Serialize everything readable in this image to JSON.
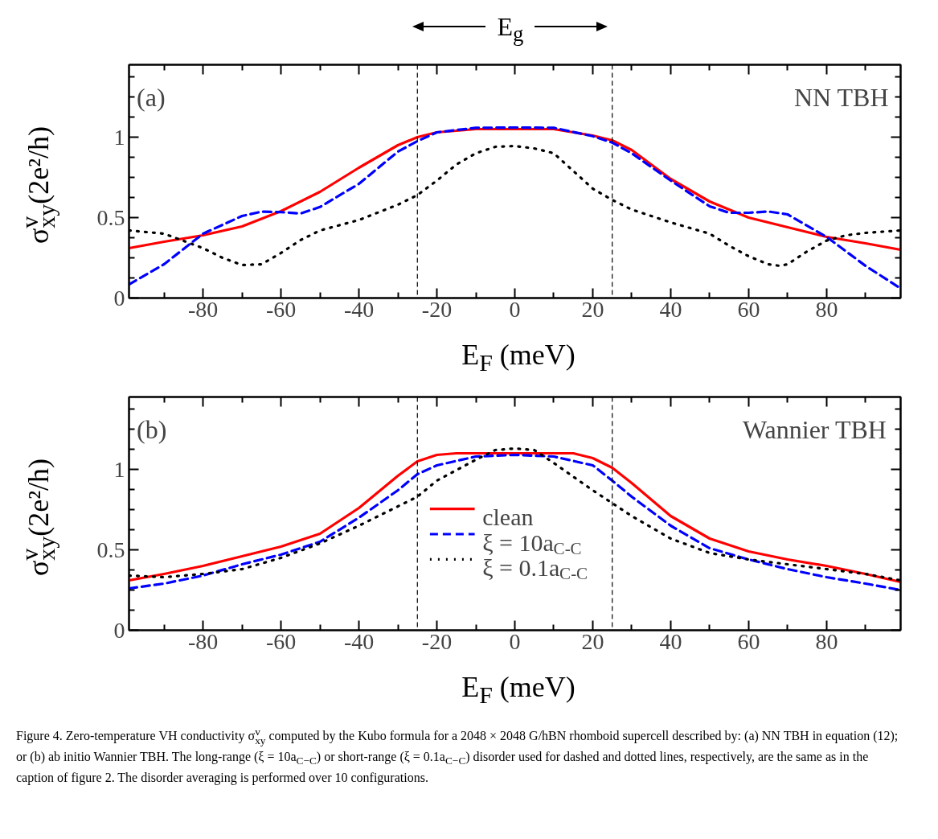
{
  "chart_data": [
    {
      "type": "line",
      "xlabel": "E$_{F}$ (meV)",
      "ylabel": "σ$^{v}$$_{xy}$(2e²/h)",
      "xlim": [
        -99,
        99
      ],
      "ylim": [
        0,
        1.45
      ],
      "xticks": [
        {
          "value": -90,
          "label": null
        },
        -80,
        {
          "value": -70,
          "label": null
        },
        -60,
        {
          "value": -50,
          "label": null
        },
        -40,
        {
          "value": -30,
          "label": null
        },
        -20,
        {
          "value": -10,
          "label": null
        },
        0,
        {
          "value": 10,
          "label": null
        },
        20,
        {
          "value": 30,
          "label": null
        },
        40,
        {
          "value": 50,
          "label": null
        },
        60,
        {
          "value": 70,
          "label": null
        },
        80,
        {
          "value": 90,
          "label": null
        }
      ],
      "yticks": [
        0,
        {
          "value": 0.125,
          "label": null
        },
        {
          "value": 0.25,
          "label": null
        },
        {
          "value": 0.375,
          "label": null
        },
        0.5,
        {
          "value": 0.625,
          "label": null
        },
        {
          "value": 0.75,
          "label": null
        },
        {
          "value": 0.875,
          "label": null
        },
        1,
        {
          "value": 1.125,
          "label": null
        },
        {
          "value": 1.25,
          "label": null
        },
        {
          "value": 1.375,
          "label": null
        }
      ],
      "grid": false,
      "legend": false,
      "marker": "none",
      "annotations": [
        "(a)",
        "NN TBH",
        "E$_{g}$"
      ],
      "ref_lines": [
        {
          "axis": "x",
          "value": -25,
          "color": "#000000",
          "line_style": "dashed"
        },
        {
          "axis": "x",
          "value": 25,
          "color": "#000000",
          "line_style": "dashed"
        }
      ],
      "series": [
        {
          "color": "#ff0000",
          "line_style": "solid",
          "x": [
            -99,
            -90,
            -80,
            -70,
            -60,
            -50,
            -40,
            -30,
            -25,
            -20,
            -10,
            0,
            10,
            20,
            25,
            30,
            40,
            50,
            60,
            70,
            80,
            90,
            99
          ],
          "values": [
            0.31,
            0.35,
            0.39,
            0.445,
            0.54,
            0.66,
            0.81,
            0.95,
            1.0,
            1.03,
            1.05,
            1.05,
            1.05,
            1.01,
            0.98,
            0.92,
            0.74,
            0.6,
            0.5,
            0.44,
            0.38,
            0.34,
            0.3
          ]
        },
        {
          "color": "#0000ff",
          "line_style": "dashed",
          "x": [
            -99,
            -90,
            -80,
            -70,
            -65,
            -60,
            -55,
            -50,
            -40,
            -30,
            -25,
            -20,
            -10,
            0,
            10,
            20,
            25,
            30,
            40,
            50,
            55,
            60,
            65,
            70,
            80,
            90,
            99
          ],
          "values": [
            0.085,
            0.21,
            0.4,
            0.51,
            0.537,
            0.534,
            0.525,
            0.566,
            0.71,
            0.91,
            0.975,
            1.03,
            1.058,
            1.06,
            1.058,
            1.006,
            0.966,
            0.9,
            0.73,
            0.57,
            0.53,
            0.53,
            0.538,
            0.52,
            0.38,
            0.2,
            0.06
          ]
        },
        {
          "color": "#000000",
          "line_style": "dotted",
          "x": [
            -99,
            -90,
            -80,
            -75,
            -70,
            -65,
            -60,
            -55,
            -50,
            -40,
            -30,
            -25,
            -20,
            -15,
            -10,
            -5,
            0,
            5,
            10,
            15,
            20,
            25,
            30,
            40,
            50,
            55,
            60,
            65,
            68,
            70,
            75,
            80,
            85,
            90,
            99
          ],
          "values": [
            0.42,
            0.4,
            0.31,
            0.25,
            0.205,
            0.21,
            0.28,
            0.36,
            0.42,
            0.485,
            0.58,
            0.64,
            0.73,
            0.83,
            0.9,
            0.94,
            0.945,
            0.93,
            0.9,
            0.79,
            0.68,
            0.61,
            0.55,
            0.47,
            0.4,
            0.325,
            0.26,
            0.21,
            0.2,
            0.21,
            0.29,
            0.357,
            0.39,
            0.405,
            0.42
          ]
        }
      ]
    },
    {
      "type": "line",
      "xlabel": "E$_{F}$ (meV)",
      "ylabel": "σ$^{v}$$_{xy}$(2e²/h)",
      "xlim": [
        -99,
        99
      ],
      "ylim": [
        0,
        1.45
      ],
      "xticks": [
        {
          "value": -90,
          "label": null
        },
        -80,
        {
          "value": -70,
          "label": null
        },
        -60,
        {
          "value": -50,
          "label": null
        },
        -40,
        {
          "value": -30,
          "label": null
        },
        -20,
        {
          "value": -10,
          "label": null
        },
        0,
        {
          "value": 10,
          "label": null
        },
        20,
        {
          "value": 30,
          "label": null
        },
        40,
        {
          "value": 50,
          "label": null
        },
        60,
        {
          "value": 70,
          "label": null
        },
        80,
        {
          "value": 90,
          "label": null
        }
      ],
      "yticks": [
        0,
        {
          "value": 0.125,
          "label": null
        },
        {
          "value": 0.25,
          "label": null
        },
        {
          "value": 0.375,
          "label": null
        },
        0.5,
        {
          "value": 0.625,
          "label": null
        },
        {
          "value": 0.75,
          "label": null
        },
        {
          "value": 0.875,
          "label": null
        },
        1,
        {
          "value": 1.125,
          "label": null
        },
        {
          "value": 1.25,
          "label": null
        },
        {
          "value": 1.375,
          "label": null
        }
      ],
      "grid": false,
      "legend": "bottom",
      "marker": "none",
      "annotations": [
        "(b)",
        "Wannier TBH",
        "Figure 4. Zero-temperature VH conductivity σ$^{v}$$_{xy}$ computed by the Kubo formula for a 2048 × 2048 G/hBN rhomboid supercell described by: (a) NN TBH in equation (12); or (b) ab initio Wannier TBH. The long-range (ξ = 10a$_{C−C}$) or short-range (ξ = 0.1a$_{C−C}$) disorder used for dashed and dotted lines, respectively, are the same as in the caption of figure 2. The disorder averaging is performed over 10 configurations."
      ],
      "ref_lines": [
        {
          "axis": "x",
          "value": -25,
          "color": "#000000",
          "line_style": "dashed"
        },
        {
          "axis": "x",
          "value": 25,
          "color": "#000000",
          "line_style": "dashed"
        }
      ],
      "series": [
        {
          "name": "clean",
          "color": "#ff0000",
          "line_style": "solid",
          "x": [
            -99,
            -90,
            -80,
            -70,
            -60,
            -50,
            -40,
            -30,
            -25,
            -20,
            -15,
            0,
            15,
            20,
            25,
            30,
            40,
            50,
            60,
            70,
            80,
            90,
            99
          ],
          "values": [
            0.31,
            0.35,
            0.4,
            0.46,
            0.52,
            0.6,
            0.76,
            0.96,
            1.05,
            1.09,
            1.1,
            1.1,
            1.1,
            1.07,
            1.01,
            0.915,
            0.71,
            0.57,
            0.49,
            0.44,
            0.4,
            0.35,
            0.3
          ]
        },
        {
          "name": "ξ = 10a$_{C-C}$",
          "color": "#0000ff",
          "line_style": "dashed",
          "x": [
            -99,
            -90,
            -80,
            -70,
            -60,
            -50,
            -40,
            -30,
            -25,
            -20,
            -10,
            0,
            10,
            20,
            25,
            30,
            40,
            50,
            60,
            70,
            80,
            90,
            99
          ],
          "values": [
            0.26,
            0.29,
            0.34,
            0.41,
            0.47,
            0.55,
            0.7,
            0.87,
            0.97,
            1.025,
            1.08,
            1.09,
            1.08,
            1.025,
            0.93,
            0.83,
            0.65,
            0.51,
            0.44,
            0.38,
            0.33,
            0.29,
            0.25
          ]
        },
        {
          "name": "ξ = 0.1a$_{C-C}$",
          "color": "#000000",
          "line_style": "dotted",
          "x": [
            -99,
            -90,
            -80,
            -70,
            -60,
            -50,
            -40,
            -30,
            -25,
            -20,
            -10,
            -5,
            0,
            5,
            10,
            20,
            25,
            30,
            40,
            50,
            60,
            70,
            80,
            90,
            99
          ],
          "values": [
            0.34,
            0.33,
            0.35,
            0.38,
            0.45,
            0.54,
            0.65,
            0.77,
            0.83,
            0.93,
            1.06,
            1.12,
            1.13,
            1.12,
            1.04,
            0.87,
            0.79,
            0.71,
            0.57,
            0.48,
            0.44,
            0.41,
            0.38,
            0.35,
            0.31
          ]
        }
      ]
    }
  ]
}
